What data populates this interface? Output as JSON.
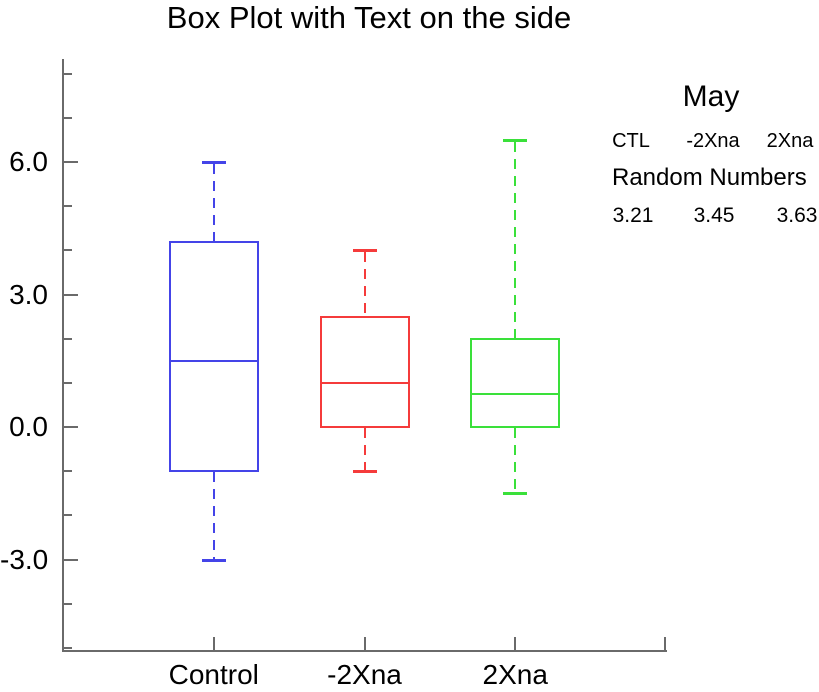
{
  "title": "Box Plot with Text on the side",
  "side_text": {
    "heading": "May",
    "columns": [
      "CTL",
      "-2Xna",
      "2Xna"
    ],
    "label": "Random Numbers",
    "values": [
      "3.21",
      "3.45",
      "3.63"
    ]
  },
  "chart_data": {
    "type": "boxplot",
    "title": "Box Plot with Text on the side",
    "categories": [
      "Control",
      "-2Xna",
      "2Xna"
    ],
    "series": [
      {
        "name": "Control",
        "color": "#4444e8",
        "whisker_low": -3.0,
        "q1": -1.0,
        "median": 1.5,
        "q3": 4.2,
        "whisker_high": 6.0
      },
      {
        "name": "-2Xna",
        "color": "#f53b3b",
        "whisker_low": -1.0,
        "q1": 0.0,
        "median": 1.0,
        "q3": 2.5,
        "whisker_high": 4.0
      },
      {
        "name": "2Xna",
        "color": "#3ae03a",
        "whisker_low": -1.5,
        "q1": 0.0,
        "median": 0.75,
        "q3": 2.0,
        "whisker_high": 6.5
      }
    ],
    "ylim": [
      -5.07,
      8.31
    ],
    "yticks_major": [
      -3.0,
      0.0,
      3.0,
      6.0
    ],
    "ytick_major_labels": [
      "-3.0",
      "0.0",
      "3.0",
      "6.0"
    ],
    "ytick_minor_step": 1.0,
    "ytick_minor_range": [
      -5,
      8
    ],
    "xlabel": "",
    "ylabel": "",
    "grid": false,
    "legend_position": "none"
  }
}
